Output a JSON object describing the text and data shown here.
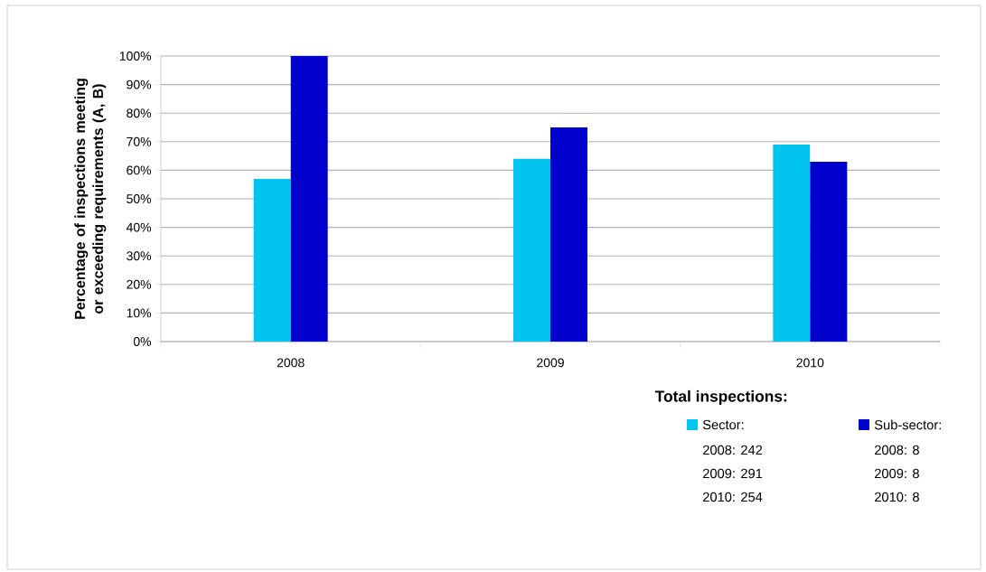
{
  "chart_data": {
    "type": "bar",
    "categories": [
      "2008",
      "2009",
      "2010"
    ],
    "series": [
      {
        "name": "Sector:",
        "color": "#00c4f0",
        "values": [
          57,
          64,
          69
        ]
      },
      {
        "name": "Sub-sector:",
        "color": "#0000cc",
        "values": [
          100,
          75,
          63
        ]
      }
    ],
    "ylim": [
      0,
      100
    ],
    "yticks": [
      {
        "value": 0,
        "label": "0%"
      },
      {
        "value": 10,
        "label": "10%"
      },
      {
        "value": 20,
        "label": "20%"
      },
      {
        "value": 30,
        "label": "30%"
      },
      {
        "value": 40,
        "label": "40%"
      },
      {
        "value": 50,
        "label": "50%"
      },
      {
        "value": 60,
        "label": "60%"
      },
      {
        "value": 70,
        "label": "70%"
      },
      {
        "value": 80,
        "label": "80%"
      },
      {
        "value": 90,
        "label": "90%"
      },
      {
        "value": 100,
        "label": "100%"
      }
    ],
    "ylabel": "Percentage of inspections meeting or exceeding requirements (A, B)",
    "legend_title": "Total inspections:",
    "legend": "bottom right",
    "grid": true,
    "annotations": [
      "2008: 242",
      "2009: 291",
      "2010: 254",
      "2008: 8",
      "2009: 8",
      "2010: 8"
    ]
  }
}
